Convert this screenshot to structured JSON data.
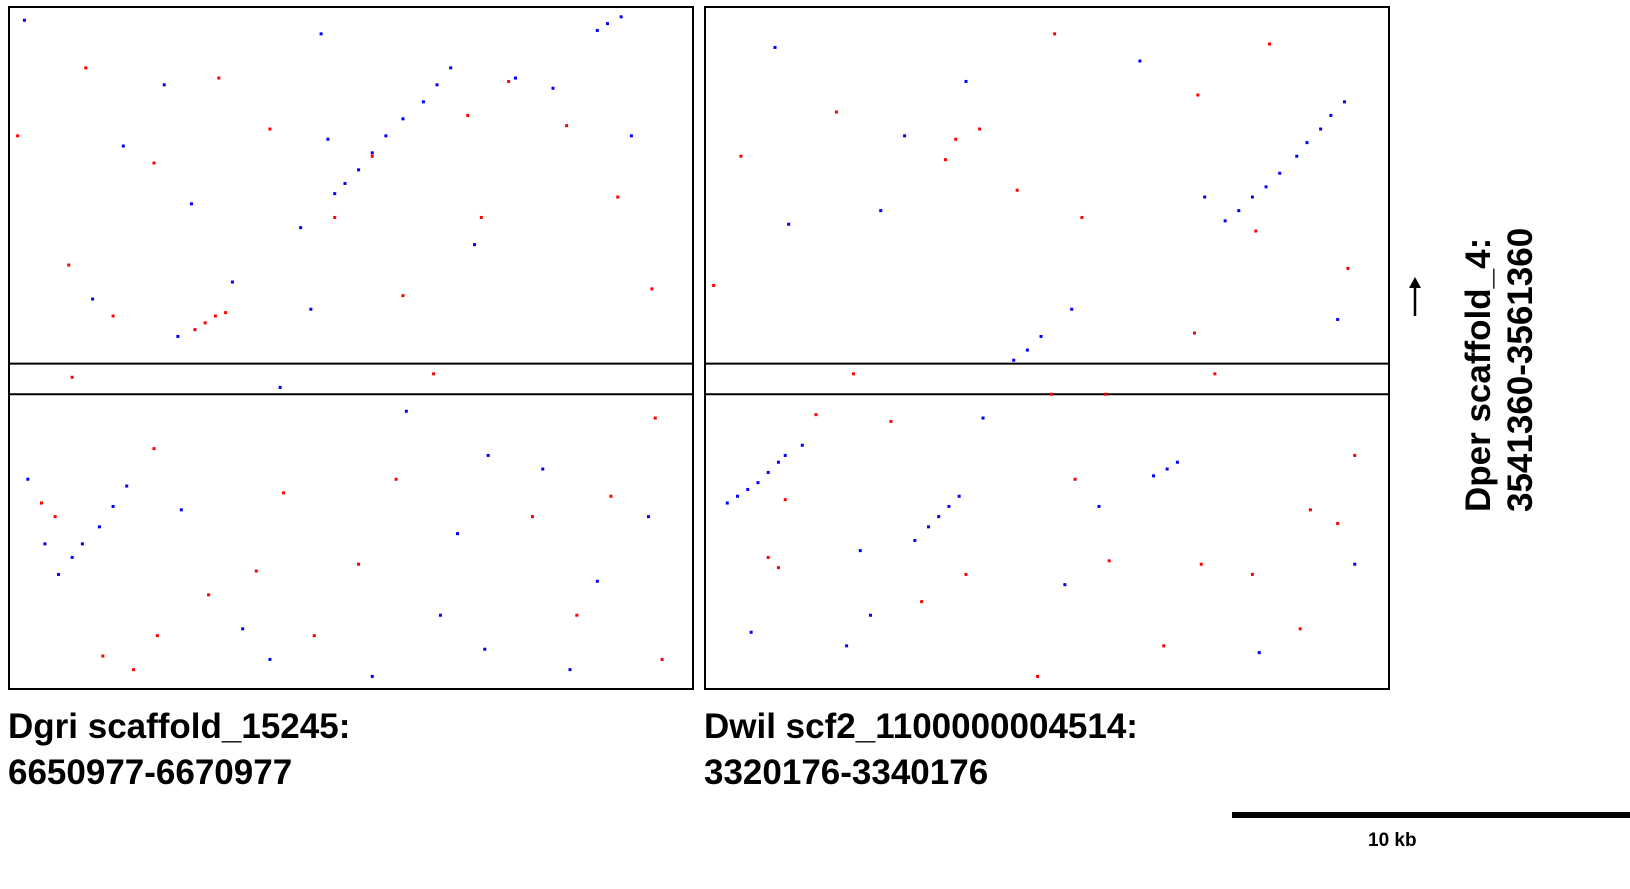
{
  "chart_data": [
    {
      "type": "scatter",
      "title": "",
      "xlabel_line1": "Dgri scaffold_15245:",
      "xlabel_line2": "6650977-6670977",
      "ylabel_line1": "Dper scaffold_4:",
      "ylabel_line2": "3541360-3561360",
      "xlim": [
        6650977,
        6670977
      ],
      "ylim": [
        3541360,
        3561360
      ],
      "gap_band": [
        3550000,
        3550900
      ],
      "series": [
        {
          "name": "",
          "color": "#0000ff",
          "points": [
            [
              6652400,
              3544700
            ],
            [
              6652800,
              3545200
            ],
            [
              6653100,
              3545600
            ],
            [
              6653600,
              3546100
            ],
            [
              6654000,
              3546700
            ],
            [
              6654400,
              3547300
            ],
            [
              6659500,
              3554900
            ],
            [
              6660500,
              3555900
            ],
            [
              6660800,
              3556200
            ],
            [
              6661200,
              3556600
            ],
            [
              6661600,
              3557100
            ],
            [
              6662000,
              3557600
            ],
            [
              6662500,
              3558100
            ],
            [
              6663100,
              3558600
            ],
            [
              6663500,
              3559100
            ],
            [
              6663900,
              3559600
            ],
            [
              6668200,
              3560700
            ],
            [
              6668500,
              3560900
            ],
            [
              6668900,
              3561100
            ],
            [
              6655500,
              3559100
            ],
            [
              6656300,
              3555600
            ],
            [
              6657500,
              3553300
            ],
            [
              6660300,
              3557500
            ],
            [
              6665800,
              3559300
            ],
            [
              6666900,
              3559000
            ],
            [
              6664100,
              3545900
            ],
            [
              6663600,
              3543500
            ],
            [
              6656000,
              3546600
            ],
            [
              6657800,
              3543100
            ],
            [
              6658600,
              3542200
            ],
            [
              6661600,
              3541700
            ],
            [
              6664900,
              3542500
            ],
            [
              6666600,
              3547800
            ],
            [
              6651500,
              3547500
            ],
            [
              6652000,
              3545600
            ],
            [
              6653400,
              3552800
            ],
            [
              6654300,
              3557300
            ],
            [
              6658900,
              3550200
            ],
            [
              6665000,
              3548200
            ],
            [
              6667400,
              3541900
            ],
            [
              6651400,
              3561000
            ],
            [
              6660100,
              3560600
            ],
            [
              6669200,
              3557600
            ],
            [
              6669700,
              3546400
            ],
            [
              6655900,
              3551700
            ],
            [
              6659800,
              3552500
            ],
            [
              6662600,
              3549500
            ],
            [
              6664600,
              3554400
            ],
            [
              6668200,
              3544500
            ]
          ]
        },
        {
          "name": "",
          "color": "#ff0000",
          "points": [
            [
              6656400,
              3551900
            ],
            [
              6656700,
              3552100
            ],
            [
              6657000,
              3552300
            ],
            [
              6657300,
              3552400
            ],
            [
              6651900,
              3546800
            ],
            [
              6652300,
              3546400
            ],
            [
              6652800,
              3550500
            ],
            [
              6654000,
              3552300
            ],
            [
              6655200,
              3556800
            ],
            [
              6657100,
              3559300
            ],
            [
              6658600,
              3557800
            ],
            [
              6660500,
              3555200
            ],
            [
              6664400,
              3558200
            ],
            [
              6665600,
              3559200
            ],
            [
              6667300,
              3557900
            ],
            [
              6668800,
              3555800
            ],
            [
              6669800,
              3553100
            ],
            [
              6664800,
              3555200
            ],
            [
              6662300,
              3547500
            ],
            [
              6661200,
              3545000
            ],
            [
              6655300,
              3542900
            ],
            [
              6654600,
              3541900
            ],
            [
              6665000,
              3541300
            ],
            [
              6670100,
              3542200
            ],
            [
              6659000,
              3547100
            ],
            [
              6651200,
              3557600
            ],
            [
              6653200,
              3559600
            ],
            [
              6663400,
              3550600
            ],
            [
              6669900,
              3549300
            ],
            [
              6656800,
              3544100
            ],
            [
              6666300,
              3546400
            ],
            [
              6659900,
              3542900
            ],
            [
              6653700,
              3542300
            ],
            [
              6661600,
              3557000
            ],
            [
              6667600,
              3543500
            ],
            [
              6652700,
              3553800
            ],
            [
              6658200,
              3544800
            ],
            [
              6662500,
              3552900
            ],
            [
              6668600,
              3547000
            ],
            [
              6655200,
              3548400
            ]
          ]
        }
      ]
    },
    {
      "type": "scatter",
      "title": "",
      "xlabel_line1": "Dwil scf2_1100000004514:",
      "xlabel_line2": "3320176-3340176",
      "ylabel_line1": "Dper scaffold_4:",
      "ylabel_line2": "3541360-3561360",
      "xlim": [
        3320176,
        3340176
      ],
      "ylim": [
        3541360,
        3561360
      ],
      "gap_band": [
        3550000,
        3550900
      ],
      "series": [
        {
          "name": "",
          "color": "#0000ff",
          "points": [
            [
              3320800,
              3546800
            ],
            [
              3321100,
              3547000
            ],
            [
              3321400,
              3547200
            ],
            [
              3321700,
              3547400
            ],
            [
              3322000,
              3547700
            ],
            [
              3322300,
              3548000
            ],
            [
              3322500,
              3548200
            ],
            [
              3323000,
              3548500
            ],
            [
              3326300,
              3545700
            ],
            [
              3326700,
              3546100
            ],
            [
              3327000,
              3546400
            ],
            [
              3327300,
              3546700
            ],
            [
              3327600,
              3547000
            ],
            [
              3335400,
              3555100
            ],
            [
              3335800,
              3555400
            ],
            [
              3336200,
              3555800
            ],
            [
              3336600,
              3556100
            ],
            [
              3337000,
              3556500
            ],
            [
              3337500,
              3557000
            ],
            [
              3337800,
              3557400
            ],
            [
              3338200,
              3557800
            ],
            [
              3338500,
              3558200
            ],
            [
              3338900,
              3558600
            ],
            [
              3333300,
              3547600
            ],
            [
              3333700,
              3547800
            ],
            [
              3334000,
              3548000
            ],
            [
              3331700,
              3546700
            ],
            [
              3330900,
              3552500
            ],
            [
              3330000,
              3551700
            ],
            [
              3329600,
              3551300
            ],
            [
              3329200,
              3551000
            ],
            [
              3328300,
              3549300
            ],
            [
              3325000,
              3543500
            ],
            [
              3324300,
              3542600
            ],
            [
              3324700,
              3545400
            ],
            [
              3326000,
              3557600
            ],
            [
              3327800,
              3559200
            ],
            [
              3322200,
              3560200
            ],
            [
              3332900,
              3559800
            ],
            [
              3334800,
              3555800
            ],
            [
              3339200,
              3545000
            ],
            [
              3336400,
              3542400
            ],
            [
              3330700,
              3544400
            ],
            [
              3322600,
              3555000
            ],
            [
              3325300,
              3555400
            ],
            [
              3338700,
              3552200
            ],
            [
              3321500,
              3543000
            ]
          ]
        },
        {
          "name": "",
          "color": "#ff0000",
          "points": [
            [
              3322000,
              3545200
            ],
            [
              3322300,
              3544900
            ],
            [
              3322500,
              3546900
            ],
            [
              3327200,
              3556900
            ],
            [
              3327500,
              3557500
            ],
            [
              3328200,
              3557800
            ],
            [
              3330300,
              3550000
            ],
            [
              3331900,
              3550000
            ],
            [
              3334500,
              3551800
            ],
            [
              3335100,
              3550600
            ],
            [
              3336300,
              3554800
            ],
            [
              3337900,
              3546600
            ],
            [
              3338700,
              3546200
            ],
            [
              3336200,
              3544700
            ],
            [
              3323400,
              3549400
            ],
            [
              3326500,
              3543900
            ],
            [
              3329900,
              3541700
            ],
            [
              3332000,
              3545100
            ],
            [
              3331200,
              3555200
            ],
            [
              3330400,
              3560600
            ],
            [
              3334600,
              3558800
            ],
            [
              3339200,
              3548200
            ],
            [
              3324500,
              3550600
            ],
            [
              3320400,
              3553200
            ],
            [
              3327800,
              3544700
            ],
            [
              3333600,
              3542600
            ],
            [
              3336700,
              3560300
            ],
            [
              3339000,
              3553700
            ],
            [
              3321200,
              3557000
            ],
            [
              3325600,
              3549200
            ],
            [
              3331000,
              3547500
            ],
            [
              3334700,
              3545000
            ],
            [
              3337600,
              3543100
            ],
            [
              3324000,
              3558300
            ],
            [
              3329300,
              3556000
            ]
          ]
        }
      ]
    }
  ],
  "scale_bar": {
    "label": "10 kb"
  },
  "colors": {
    "forward": "#0000ff",
    "reverse": "#ff0000",
    "frame": "#000000"
  }
}
